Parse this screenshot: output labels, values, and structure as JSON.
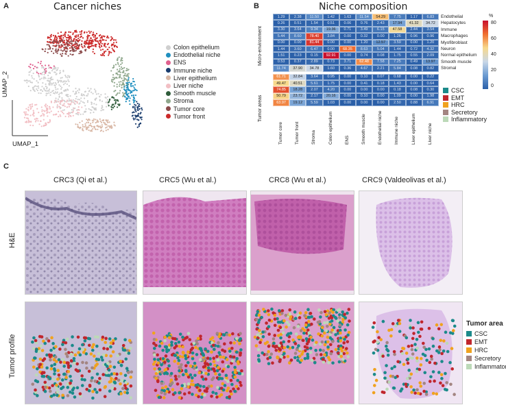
{
  "panelA": {
    "letter": "A",
    "title": "Cancer niches",
    "umap_x": "UMAP_1",
    "umap_y": "UMAP_2",
    "legend": [
      {
        "label": "Colon epithelium",
        "color": "#cfcfcf"
      },
      {
        "label": "Endothelial niche",
        "color": "#1f8fbf"
      },
      {
        "label": "ENS",
        "color": "#e0608e"
      },
      {
        "label": "Immune niche",
        "color": "#1a3d6e"
      },
      {
        "label": "Liver epithelium",
        "color": "#d9b8a6"
      },
      {
        "label": "Liver niche",
        "color": "#f2bfc4"
      },
      {
        "label": "Smooth muscle",
        "color": "#2f5c3a"
      },
      {
        "label": "Stroma",
        "color": "#8fa78c"
      },
      {
        "label": "Tumor core",
        "color": "#8b4a4a"
      },
      {
        "label": "Tumor front",
        "color": "#cc2a2a"
      }
    ]
  },
  "panelB": {
    "letter": "B",
    "title": "Niche composition",
    "scale_unit": "%",
    "scale_ticks": [
      "80",
      "60",
      "40",
      "20",
      "0"
    ],
    "group_micro": "Micro-environment",
    "group_tumor": "Tumor areas",
    "tumor_legend": [
      {
        "label": "CSC",
        "color": "#1b8a8a"
      },
      {
        "label": "EMT",
        "color": "#c0262d"
      },
      {
        "label": "HRC",
        "color": "#f0a21e"
      },
      {
        "label": "Secretory",
        "color": "#a38581"
      },
      {
        "label": "Inflammatory",
        "color": "#bcd9b8"
      }
    ]
  },
  "chart_data": {
    "type": "heatmap",
    "title": "Niche composition",
    "columns": [
      "Tumor core",
      "Tumor front",
      "Stroma",
      "Colon epithelium",
      "ENS",
      "Smooth muscle",
      "Endothelial niche",
      "Immune niche",
      "Liver epithelium",
      "Liver niche"
    ],
    "rows_micro": [
      "Endothelial",
      "Hepatocytes",
      "Immune",
      "Macrophages",
      "Myofibroblast",
      "Neuron",
      "Normal epithelium",
      "Smooth muscle",
      "Stromal"
    ],
    "rows_tumor": [
      "CSC",
      "EMT",
      "HRC",
      "Secretory",
      "Inflammatory"
    ],
    "values_micro": [
      [
        "1.29",
        "2.38",
        "11.50",
        "1.42",
        "1.63",
        "11.54",
        "54.29",
        "7.75",
        "1.17",
        "6.83"
      ],
      [
        "0.26",
        "0.51",
        "1.54",
        "0.51",
        "0.06",
        "0.76",
        "2.43",
        "17.94",
        "41.32",
        "34.72"
      ],
      [
        "3.30",
        "3.64",
        "9.34",
        "19.36",
        "0.71",
        "3.49",
        "6.15",
        "47.58",
        "2.44",
        "3.54"
      ],
      [
        "5.44",
        "8.60",
        "78.40",
        "3.84",
        "0.00",
        "0.32",
        "0.00",
        "1.26",
        "0.96",
        "0.96"
      ],
      [
        "0.00",
        "0.00",
        "81.44",
        "0.00",
        "0.00",
        "1.20",
        "12.57",
        "3.59",
        "0.00",
        "1.20"
      ],
      [
        "1.44",
        "3.60",
        "6.47",
        "0.00",
        "68.35",
        "8.63",
        "5.04",
        "1.44",
        "0.72",
        "4.32"
      ],
      [
        "1.51",
        "0.23",
        "0.15",
        "92.91",
        "0.00",
        "0.74",
        "0.08",
        "1.75",
        "0.55",
        "2.09"
      ],
      [
        "0.53",
        "0.37",
        "2.89",
        "0.73",
        "3.71",
        "62.48",
        "7.58",
        "7.25",
        "0.49",
        "13.97"
      ],
      [
        "11.74",
        "37.90",
        "34.78",
        "1.60",
        "0.36",
        "4.67",
        "2.21",
        "5.84",
        "0.08",
        "0.82"
      ]
    ],
    "values_tumor": [
      [
        "61.71",
        "32.84",
        "3.64",
        "0.95",
        "0.00",
        "0.10",
        "0.07",
        "0.68",
        "0.00",
        "0.22"
      ],
      [
        "49.47",
        "40.51",
        "5.61",
        "1.75",
        "0.00",
        "0.41",
        "0.18",
        "1.43",
        "0.00",
        "0.64"
      ],
      [
        "74.85",
        "18.28",
        "2.07",
        "4.20",
        "0.00",
        "0.00",
        "0.00",
        "0.18",
        "0.08",
        "0.30"
      ],
      [
        "50.79",
        "23.72",
        "2.17",
        "20.16",
        "0.00",
        "0.10",
        "0.00",
        "1.09",
        "0.00",
        "1.98"
      ],
      [
        "63.97",
        "19.12",
        "5.59",
        "1.03",
        "0.00",
        "0.00",
        "0.00",
        "2.50",
        "0.88",
        "6.91"
      ]
    ]
  },
  "panelC": {
    "letter": "C",
    "columns": [
      "CRC3 (Qi et al.)",
      "CRC5 (Wu et al.)",
      "CRC8 (Wu et al.)",
      "CRC9 (Valdeolivas et al.)"
    ],
    "row_he": "H&E",
    "row_profile": "Tumor profile",
    "legend_title": "Tumor area",
    "legend": [
      {
        "label": "CSC",
        "color": "#1b8a8a"
      },
      {
        "label": "EMT",
        "color": "#c0262d"
      },
      {
        "label": "HRC",
        "color": "#f0a21e"
      },
      {
        "label": "Secretory",
        "color": "#a38581"
      },
      {
        "label": "Inflammatory",
        "color": "#bcd9b8"
      }
    ]
  }
}
